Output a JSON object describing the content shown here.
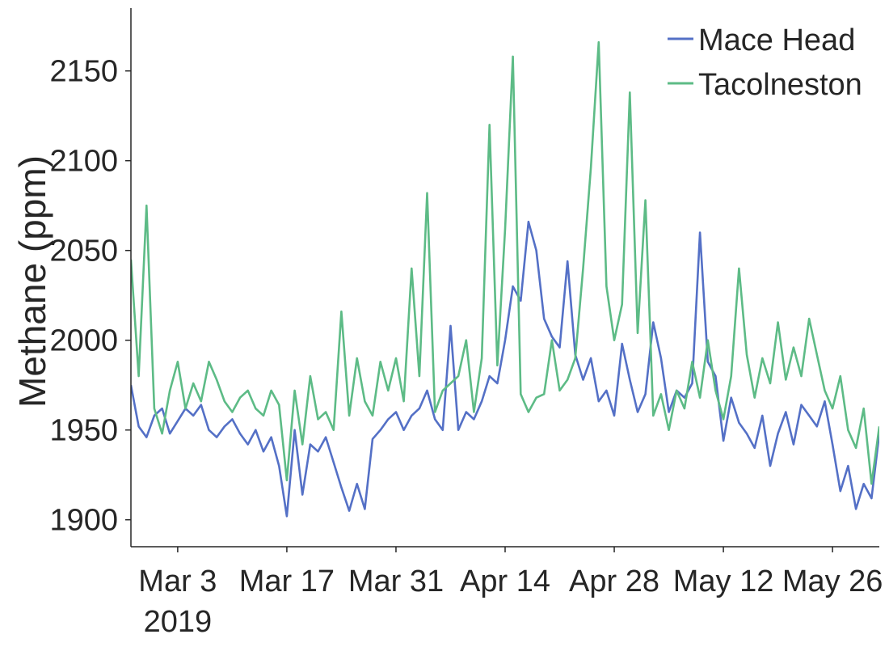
{
  "chart_data": {
    "type": "line",
    "title": "",
    "xlabel": "",
    "ylabel": "Methane (ppm)",
    "x_axis": {
      "min": "2019-02-25",
      "max": "2019-06-01",
      "ticks": [
        {
          "date": "2019-03-03",
          "label": "Mar 3",
          "sublabel": "2019"
        },
        {
          "date": "2019-03-17",
          "label": "Mar 17",
          "sublabel": ""
        },
        {
          "date": "2019-03-31",
          "label": "Mar 31",
          "sublabel": ""
        },
        {
          "date": "2019-04-14",
          "label": "Apr 14",
          "sublabel": ""
        },
        {
          "date": "2019-04-28",
          "label": "Apr 28",
          "sublabel": ""
        },
        {
          "date": "2019-05-12",
          "label": "May 12",
          "sublabel": ""
        },
        {
          "date": "2019-05-26",
          "label": "May 26",
          "sublabel": ""
        }
      ]
    },
    "y_axis": {
      "min": 1885,
      "max": 2185,
      "ticks": [
        1900,
        1950,
        2000,
        2050,
        2100,
        2150
      ],
      "tick_labels": [
        "1900",
        "1950",
        "2000",
        "2050",
        "2100",
        "2150"
      ]
    },
    "grid": false,
    "legend_position": "top-right",
    "series": [
      {
        "name": "Mace Head",
        "color": "#5470c6",
        "points": [
          [
            "2019-02-25",
            1975
          ],
          [
            "2019-02-26",
            1952
          ],
          [
            "2019-02-27",
            1946
          ],
          [
            "2019-02-28",
            1958
          ],
          [
            "2019-03-01",
            1962
          ],
          [
            "2019-03-02",
            1948
          ],
          [
            "2019-03-03",
            1955
          ],
          [
            "2019-03-04",
            1962
          ],
          [
            "2019-03-05",
            1958
          ],
          [
            "2019-03-06",
            1964
          ],
          [
            "2019-03-07",
            1950
          ],
          [
            "2019-03-08",
            1946
          ],
          [
            "2019-03-09",
            1952
          ],
          [
            "2019-03-10",
            1956
          ],
          [
            "2019-03-11",
            1948
          ],
          [
            "2019-03-12",
            1942
          ],
          [
            "2019-03-13",
            1950
          ],
          [
            "2019-03-14",
            1938
          ],
          [
            "2019-03-15",
            1946
          ],
          [
            "2019-03-16",
            1930
          ],
          [
            "2019-03-17",
            1902
          ],
          [
            "2019-03-18",
            1950
          ],
          [
            "2019-03-19",
            1914
          ],
          [
            "2019-03-20",
            1942
          ],
          [
            "2019-03-21",
            1938
          ],
          [
            "2019-03-22",
            1946
          ],
          [
            "2019-03-23",
            1932
          ],
          [
            "2019-03-24",
            1918
          ],
          [
            "2019-03-25",
            1905
          ],
          [
            "2019-03-26",
            1920
          ],
          [
            "2019-03-27",
            1906
          ],
          [
            "2019-03-28",
            1945
          ],
          [
            "2019-03-29",
            1950
          ],
          [
            "2019-03-30",
            1956
          ],
          [
            "2019-03-31",
            1960
          ],
          [
            "2019-04-01",
            1950
          ],
          [
            "2019-04-02",
            1958
          ],
          [
            "2019-04-03",
            1962
          ],
          [
            "2019-04-04",
            1972
          ],
          [
            "2019-04-05",
            1956
          ],
          [
            "2019-04-06",
            1950
          ],
          [
            "2019-04-07",
            2008
          ],
          [
            "2019-04-08",
            1950
          ],
          [
            "2019-04-09",
            1960
          ],
          [
            "2019-04-10",
            1956
          ],
          [
            "2019-04-11",
            1966
          ],
          [
            "2019-04-12",
            1980
          ],
          [
            "2019-04-13",
            1976
          ],
          [
            "2019-04-14",
            2000
          ],
          [
            "2019-04-15",
            2030
          ],
          [
            "2019-04-16",
            2022
          ],
          [
            "2019-04-17",
            2066
          ],
          [
            "2019-04-18",
            2050
          ],
          [
            "2019-04-19",
            2012
          ],
          [
            "2019-04-20",
            2002
          ],
          [
            "2019-04-21",
            1996
          ],
          [
            "2019-04-22",
            2044
          ],
          [
            "2019-04-23",
            1992
          ],
          [
            "2019-04-24",
            1978
          ],
          [
            "2019-04-25",
            1990
          ],
          [
            "2019-04-26",
            1966
          ],
          [
            "2019-04-27",
            1972
          ],
          [
            "2019-04-28",
            1958
          ],
          [
            "2019-04-29",
            1998
          ],
          [
            "2019-04-30",
            1978
          ],
          [
            "2019-05-01",
            1960
          ],
          [
            "2019-05-02",
            1970
          ],
          [
            "2019-05-03",
            2010
          ],
          [
            "2019-05-04",
            1990
          ],
          [
            "2019-05-05",
            1960
          ],
          [
            "2019-05-06",
            1972
          ],
          [
            "2019-05-07",
            1968
          ],
          [
            "2019-05-08",
            1976
          ],
          [
            "2019-05-09",
            2060
          ],
          [
            "2019-05-10",
            1988
          ],
          [
            "2019-05-11",
            1980
          ],
          [
            "2019-05-12",
            1944
          ],
          [
            "2019-05-13",
            1968
          ],
          [
            "2019-05-14",
            1954
          ],
          [
            "2019-05-15",
            1948
          ],
          [
            "2019-05-16",
            1940
          ],
          [
            "2019-05-17",
            1958
          ],
          [
            "2019-05-18",
            1930
          ],
          [
            "2019-05-19",
            1948
          ],
          [
            "2019-05-20",
            1960
          ],
          [
            "2019-05-21",
            1942
          ],
          [
            "2019-05-22",
            1964
          ],
          [
            "2019-05-23",
            1958
          ],
          [
            "2019-05-24",
            1952
          ],
          [
            "2019-05-25",
            1966
          ],
          [
            "2019-05-26",
            1942
          ],
          [
            "2019-05-27",
            1916
          ],
          [
            "2019-05-28",
            1930
          ],
          [
            "2019-05-29",
            1906
          ],
          [
            "2019-05-30",
            1920
          ],
          [
            "2019-05-31",
            1912
          ],
          [
            "2019-06-01",
            1948
          ]
        ]
      },
      {
        "name": "Tacolneston",
        "color": "#5dbb86",
        "points": [
          [
            "2019-02-25",
            2045
          ],
          [
            "2019-02-26",
            1980
          ],
          [
            "2019-02-27",
            2075
          ],
          [
            "2019-02-28",
            1962
          ],
          [
            "2019-03-01",
            1948
          ],
          [
            "2019-03-02",
            1972
          ],
          [
            "2019-03-03",
            1988
          ],
          [
            "2019-03-04",
            1962
          ],
          [
            "2019-03-05",
            1976
          ],
          [
            "2019-03-06",
            1966
          ],
          [
            "2019-03-07",
            1988
          ],
          [
            "2019-03-08",
            1978
          ],
          [
            "2019-03-09",
            1966
          ],
          [
            "2019-03-10",
            1960
          ],
          [
            "2019-03-11",
            1968
          ],
          [
            "2019-03-12",
            1972
          ],
          [
            "2019-03-13",
            1962
          ],
          [
            "2019-03-14",
            1958
          ],
          [
            "2019-03-15",
            1972
          ],
          [
            "2019-03-16",
            1964
          ],
          [
            "2019-03-17",
            1922
          ],
          [
            "2019-03-18",
            1972
          ],
          [
            "2019-03-19",
            1942
          ],
          [
            "2019-03-20",
            1980
          ],
          [
            "2019-03-21",
            1956
          ],
          [
            "2019-03-22",
            1960
          ],
          [
            "2019-03-23",
            1950
          ],
          [
            "2019-03-24",
            2016
          ],
          [
            "2019-03-25",
            1958
          ],
          [
            "2019-03-26",
            1990
          ],
          [
            "2019-03-27",
            1966
          ],
          [
            "2019-03-28",
            1958
          ],
          [
            "2019-03-29",
            1988
          ],
          [
            "2019-03-30",
            1972
          ],
          [
            "2019-03-31",
            1990
          ],
          [
            "2019-04-01",
            1966
          ],
          [
            "2019-04-02",
            2040
          ],
          [
            "2019-04-03",
            1980
          ],
          [
            "2019-04-04",
            2082
          ],
          [
            "2019-04-05",
            1960
          ],
          [
            "2019-04-06",
            1972
          ],
          [
            "2019-04-07",
            1976
          ],
          [
            "2019-04-08",
            1980
          ],
          [
            "2019-04-09",
            2000
          ],
          [
            "2019-04-10",
            1960
          ],
          [
            "2019-04-11",
            1990
          ],
          [
            "2019-04-12",
            2120
          ],
          [
            "2019-04-13",
            1986
          ],
          [
            "2019-04-14",
            2062
          ],
          [
            "2019-04-15",
            2158
          ],
          [
            "2019-04-16",
            1970
          ],
          [
            "2019-04-17",
            1960
          ],
          [
            "2019-04-18",
            1968
          ],
          [
            "2019-04-19",
            1970
          ],
          [
            "2019-04-20",
            2000
          ],
          [
            "2019-04-21",
            1972
          ],
          [
            "2019-04-22",
            1978
          ],
          [
            "2019-04-23",
            1990
          ],
          [
            "2019-04-24",
            2040
          ],
          [
            "2019-04-25",
            2096
          ],
          [
            "2019-04-26",
            2166
          ],
          [
            "2019-04-27",
            2030
          ],
          [
            "2019-04-28",
            2000
          ],
          [
            "2019-04-29",
            2020
          ],
          [
            "2019-04-30",
            2138
          ],
          [
            "2019-05-01",
            2004
          ],
          [
            "2019-05-02",
            2078
          ],
          [
            "2019-05-03",
            1958
          ],
          [
            "2019-05-04",
            1970
          ],
          [
            "2019-05-05",
            1950
          ],
          [
            "2019-05-06",
            1972
          ],
          [
            "2019-05-07",
            1962
          ],
          [
            "2019-05-08",
            1988
          ],
          [
            "2019-05-09",
            1968
          ],
          [
            "2019-05-10",
            2000
          ],
          [
            "2019-05-11",
            1972
          ],
          [
            "2019-05-12",
            1956
          ],
          [
            "2019-05-13",
            1980
          ],
          [
            "2019-05-14",
            2040
          ],
          [
            "2019-05-15",
            1992
          ],
          [
            "2019-05-16",
            1968
          ],
          [
            "2019-05-17",
            1990
          ],
          [
            "2019-05-18",
            1976
          ],
          [
            "2019-05-19",
            2010
          ],
          [
            "2019-05-20",
            1978
          ],
          [
            "2019-05-21",
            1996
          ],
          [
            "2019-05-22",
            1980
          ],
          [
            "2019-05-23",
            2012
          ],
          [
            "2019-05-24",
            1992
          ],
          [
            "2019-05-25",
            1972
          ],
          [
            "2019-05-26",
            1962
          ],
          [
            "2019-05-27",
            1980
          ],
          [
            "2019-05-28",
            1950
          ],
          [
            "2019-05-29",
            1940
          ],
          [
            "2019-05-30",
            1962
          ],
          [
            "2019-05-31",
            1920
          ],
          [
            "2019-06-01",
            1952
          ]
        ]
      }
    ]
  }
}
